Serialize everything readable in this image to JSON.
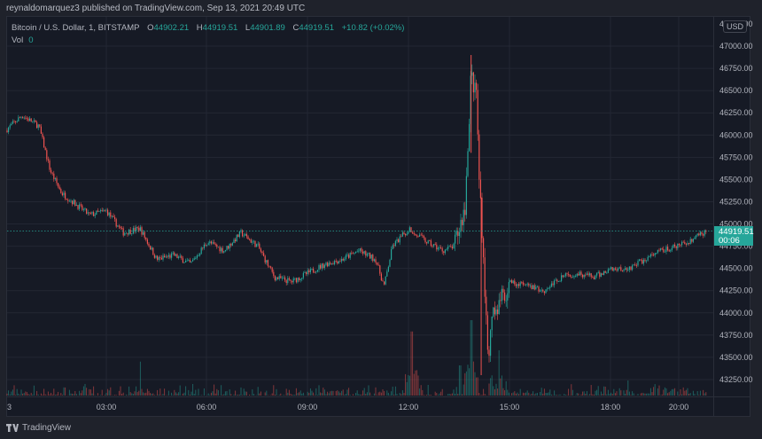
{
  "header": {
    "published_line": "reynaldomarquez3 published on TradingView.com, Sep 13, 2021 20:49 UTC"
  },
  "legend": {
    "symbol": "Bitcoin / U.S. Dollar, 1, BITSTAMP",
    "open_key": "O",
    "open": "44902.21",
    "high_key": "H",
    "high": "44919.51",
    "low_key": "L",
    "low": "44901.89",
    "close_key": "C",
    "close": "44919.51",
    "change": "+10.82 (+0.02%)",
    "vol_label": "Vol",
    "vol_value": "0"
  },
  "price_axis": {
    "currency": "USD",
    "last_price": "44919.51",
    "countdown": "00:06"
  },
  "footer": {
    "brand": "TradingView"
  },
  "colors": {
    "up": "#26a69a",
    "down": "#ef5350",
    "background": "#161a25",
    "outer": "#1f222b",
    "grid": "#232733"
  },
  "chart_data": {
    "type": "candlestick",
    "title": "Bitcoin / U.S. Dollar, 1, BITSTAMP",
    "timeframe": "1 minute",
    "exchange": "BITSTAMP",
    "xlabel": "",
    "ylabel": "USD",
    "x_tick_labels": [
      "3",
      "03:00",
      "06:00",
      "09:00",
      "12:00",
      "15:00",
      "18:00",
      "20:00"
    ],
    "y_tick_labels": [
      "47000.00",
      "46750.00",
      "46500.00",
      "46250.00",
      "46000.00",
      "45750.00",
      "45500.00",
      "45250.00",
      "45000.00",
      "44750.00",
      "44500.00",
      "44250.00",
      "44000.00",
      "43750.00",
      "43500.00",
      "43250.00"
    ],
    "ylim": [
      43100,
      47250
    ],
    "grid": true,
    "last_price": 44919.51,
    "price_path_approx": {
      "time": [
        "00:00",
        "00:30",
        "01:00",
        "01:20",
        "01:40",
        "02:00",
        "02:30",
        "03:00",
        "03:30",
        "04:00",
        "04:30",
        "05:00",
        "05:30",
        "06:00",
        "06:30",
        "07:00",
        "07:30",
        "08:00",
        "08:30",
        "09:00",
        "09:30",
        "10:00",
        "10:30",
        "11:00",
        "11:15",
        "11:30",
        "12:00",
        "12:30",
        "13:00",
        "13:20",
        "13:40",
        "13:50",
        "14:00",
        "14:05",
        "14:10",
        "14:20",
        "14:30",
        "15:00",
        "15:30",
        "16:00",
        "16:30",
        "17:00",
        "17:30",
        "18:00",
        "18:30",
        "19:00",
        "19:30",
        "20:00",
        "20:30",
        "20:49"
      ],
      "close": [
        46050,
        46220,
        46100,
        45600,
        45350,
        45250,
        45100,
        45150,
        44900,
        44950,
        44600,
        44650,
        44550,
        44800,
        44700,
        44900,
        44750,
        44400,
        44350,
        44450,
        44550,
        44600,
        44700,
        44600,
        44300,
        44750,
        44950,
        44800,
        44700,
        44750,
        45200,
        46700,
        46400,
        45500,
        44900,
        43500,
        44000,
        44350,
        44300,
        44250,
        44400,
        44450,
        44400,
        44500,
        44500,
        44600,
        44700,
        44750,
        44850,
        44919.51
      ]
    },
    "volume": {
      "label": "Vol",
      "notable_spikes": [
        {
          "time": "04:00",
          "relative": 0.45
        },
        {
          "time": "12:05",
          "relative": 0.85
        },
        {
          "time": "13:30",
          "relative": 0.4
        },
        {
          "time": "13:50",
          "relative": 1.0
        },
        {
          "time": "14:40",
          "relative": 0.6
        },
        {
          "time": "18:30",
          "relative": 0.2
        }
      ]
    }
  }
}
